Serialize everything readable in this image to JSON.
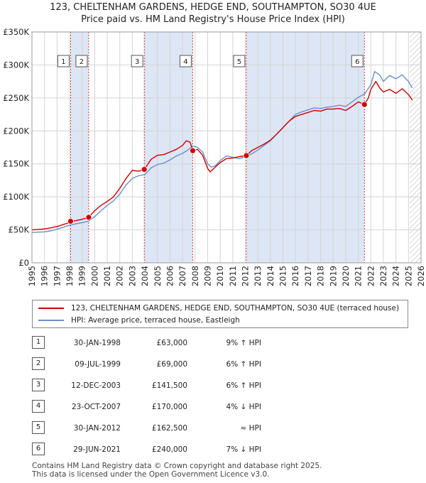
{
  "title_line1": "123, CHELTENHAM GARDENS, HEDGE END, SOUTHAMPTON, SO30 4UE",
  "title_line2": "Price paid vs. HM Land Registry's House Price Index (HPI)",
  "colors": {
    "property": "#cc0000",
    "hpi": "#6b8fc9",
    "span_fill": "#dde6f5",
    "hatch": "#bbbbbb",
    "grid": "#d4d4d4",
    "marker_line": "#d04040"
  },
  "legend": {
    "property_label": "123, CHELTENHAM GARDENS, HEDGE END, SOUTHAMPTON, SO30 4UE (terraced house)",
    "hpi_label": "HPI: Average price, terraced house, Eastleigh"
  },
  "sales": [
    {
      "num": "1",
      "date": "30-JAN-1998",
      "price": "£63,000",
      "delta": "9% ↑ HPI"
    },
    {
      "num": "2",
      "date": "09-JUL-1999",
      "price": "£69,000",
      "delta": "6% ↑ HPI"
    },
    {
      "num": "3",
      "date": "12-DEC-2003",
      "price": "£141,500",
      "delta": "6% ↑ HPI"
    },
    {
      "num": "4",
      "date": "23-OCT-2007",
      "price": "£170,000",
      "delta": "4% ↓ HPI"
    },
    {
      "num": "5",
      "date": "30-JAN-2012",
      "price": "£162,500",
      "delta": "≈ HPI"
    },
    {
      "num": "6",
      "date": "29-JUN-2021",
      "price": "£240,000",
      "delta": "7% ↓ HPI"
    }
  ],
  "footer_line1": "Contains HM Land Registry data © Crown copyright and database right 2025.",
  "footer_line2": "This data is licensed under the Open Government Licence v3.0.",
  "chart_data": {
    "type": "line",
    "title": "123, CHELTENHAM GARDENS, HEDGE END, SOUTHAMPTON, SO30 4UE",
    "subtitle": "Price paid vs. HM Land Registry's House Price Index (HPI)",
    "xlim": [
      1995,
      2026
    ],
    "ylim": [
      0,
      350000
    ],
    "x_ticks": [
      1995,
      1996,
      1997,
      1998,
      1999,
      2000,
      2001,
      2002,
      2003,
      2004,
      2005,
      2006,
      2007,
      2008,
      2009,
      2010,
      2011,
      2012,
      2013,
      2014,
      2015,
      2016,
      2017,
      2018,
      2019,
      2020,
      2021,
      2022,
      2023,
      2024,
      2025,
      2026
    ],
    "y_ticks": [
      {
        "value": 0,
        "label": "£0"
      },
      {
        "value": 50000,
        "label": "£50K"
      },
      {
        "value": 100000,
        "label": "£100K"
      },
      {
        "value": 150000,
        "label": "£150K"
      },
      {
        "value": 200000,
        "label": "£200K"
      },
      {
        "value": 250000,
        "label": "£250K"
      },
      {
        "value": 300000,
        "label": "£300K"
      },
      {
        "value": 350000,
        "label": "£350K"
      }
    ],
    "highlight_spans": [
      [
        1998.08,
        1999.52
      ],
      [
        2003.95,
        2007.81
      ],
      [
        2012.08,
        2021.49
      ]
    ],
    "hatched_after": 2025.1,
    "sale_markers": [
      {
        "label": "1",
        "x": 1998.08,
        "y": 63000
      },
      {
        "label": "2",
        "x": 1999.52,
        "y": 69000
      },
      {
        "label": "3",
        "x": 2003.95,
        "y": 141500
      },
      {
        "label": "4",
        "x": 2007.81,
        "y": 170000
      },
      {
        "label": "5",
        "x": 2012.08,
        "y": 162500
      },
      {
        "label": "6",
        "x": 2021.49,
        "y": 240000
      }
    ],
    "series": [
      {
        "name": "123, CHELTENHAM GARDENS, HEDGE END, SOUTHAMPTON, SO30 4UE (terraced house)",
        "x": [
          1995.0,
          1995.5,
          1996.0,
          1996.5,
          1997.0,
          1997.5,
          1998.0,
          1998.08,
          1998.5,
          1999.0,
          1999.52,
          2000.0,
          2000.5,
          2001.0,
          2001.5,
          2002.0,
          2002.5,
          2003.0,
          2003.5,
          2003.95,
          2004.5,
          2005.0,
          2005.5,
          2006.0,
          2006.5,
          2007.0,
          2007.3,
          2007.6,
          2007.81,
          2008.2,
          2008.6,
          2009.0,
          2009.2,
          2009.6,
          2010.0,
          2010.5,
          2011.0,
          2011.5,
          2012.08,
          2012.5,
          2013.0,
          2013.5,
          2014.0,
          2014.5,
          2015.0,
          2015.5,
          2016.0,
          2016.5,
          2017.0,
          2017.5,
          2018.0,
          2018.5,
          2019.0,
          2019.5,
          2020.0,
          2020.5,
          2021.0,
          2021.49,
          2021.8,
          2022.0,
          2022.4,
          2022.7,
          2023.0,
          2023.5,
          2024.0,
          2024.5,
          2025.0,
          2025.3
        ],
        "values": [
          50000,
          50500,
          51500,
          53000,
          55000,
          58000,
          61000,
          63000,
          64000,
          66000,
          69000,
          79000,
          87000,
          93000,
          100000,
          113000,
          128000,
          140000,
          139000,
          141500,
          157000,
          163000,
          164000,
          168000,
          172000,
          178000,
          185000,
          183000,
          170000,
          172000,
          163000,
          143000,
          138000,
          145000,
          152000,
          158000,
          159000,
          161000,
          162500,
          170000,
          175000,
          180000,
          186000,
          195000,
          205000,
          215000,
          222000,
          225000,
          228000,
          231000,
          230000,
          233000,
          233000,
          234000,
          231000,
          237000,
          244000,
          240000,
          250000,
          263000,
          275000,
          265000,
          259000,
          263000,
          257000,
          264000,
          255000,
          247000
        ]
      },
      {
        "name": "HPI: Average price, terraced house, Eastleigh",
        "x": [
          1995.0,
          1995.5,
          1996.0,
          1996.5,
          1997.0,
          1997.5,
          1998.0,
          1998.5,
          1999.0,
          1999.5,
          2000.0,
          2000.5,
          2001.0,
          2001.5,
          2002.0,
          2002.5,
          2003.0,
          2003.5,
          2004.0,
          2004.5,
          2005.0,
          2005.5,
          2006.0,
          2006.5,
          2007.0,
          2007.5,
          2007.8,
          2008.2,
          2008.6,
          2009.0,
          2009.3,
          2009.6,
          2010.0,
          2010.5,
          2011.0,
          2011.5,
          2012.0,
          2012.5,
          2013.0,
          2013.5,
          2014.0,
          2014.5,
          2015.0,
          2015.5,
          2016.0,
          2016.5,
          2017.0,
          2017.5,
          2018.0,
          2018.5,
          2019.0,
          2019.5,
          2020.0,
          2020.5,
          2021.0,
          2021.5,
          2022.0,
          2022.3,
          2022.7,
          2023.0,
          2023.5,
          2024.0,
          2024.5,
          2025.0,
          2025.3
        ],
        "values": [
          46000,
          46500,
          47000,
          48500,
          51000,
          54000,
          57000,
          59000,
          61000,
          63000,
          70000,
          79000,
          87000,
          94000,
          104000,
          118000,
          128000,
          132000,
          134000,
          144000,
          149000,
          151000,
          156000,
          162000,
          166000,
          172000,
          177000,
          175000,
          168000,
          150000,
          145000,
          147000,
          155000,
          162000,
          160000,
          158000,
          161000,
          165000,
          171000,
          178000,
          185000,
          195000,
          205000,
          215000,
          225000,
          229000,
          232000,
          235000,
          234000,
          236000,
          237000,
          239000,
          237000,
          244000,
          251000,
          256000,
          270000,
          290000,
          285000,
          275000,
          284000,
          279000,
          285000,
          275000,
          265000
        ]
      }
    ]
  }
}
